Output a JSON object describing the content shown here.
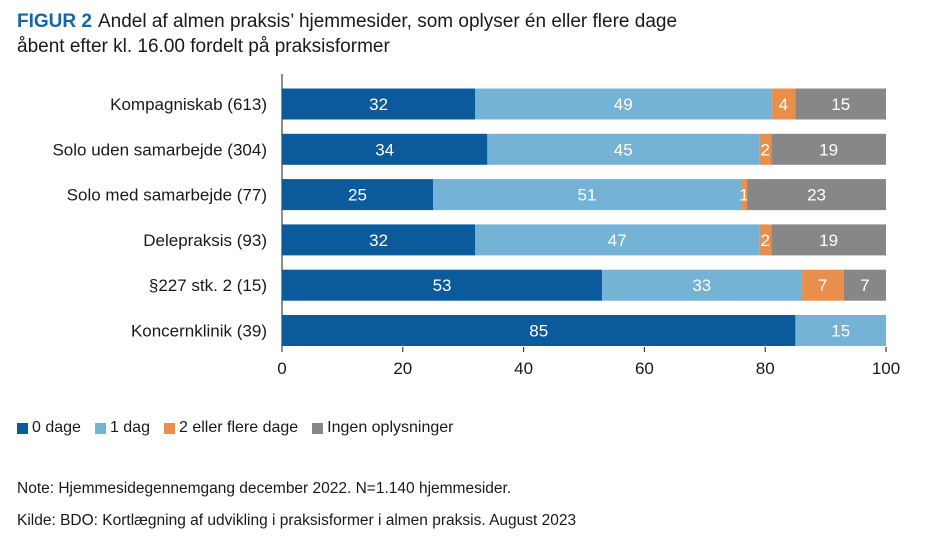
{
  "figure": {
    "label": "FIGUR 2",
    "title": "Andel af almen praksis’ hjemmesider, som oplyser én eller flere dage åbent efter kl. 16.00 fordelt på praksisformer"
  },
  "colors": {
    "0 dage": "#0b5b9c",
    "1 dag": "#74b2d6",
    "2 eller flere dage": "#e98f4d",
    "Ingen oplysninger": "#878787",
    "title_accent": "#1665a8"
  },
  "chart_data": {
    "type": "bar",
    "orientation": "horizontal",
    "stacked": true,
    "title": "Andel af almen praksis’ hjemmesider, som oplyser én eller flere dage åbent efter kl. 16.00 fordelt på praksisformer",
    "xlabel": "",
    "ylabel": "",
    "xlim": [
      0,
      100
    ],
    "x_ticks": [
      0,
      20,
      40,
      60,
      80,
      100
    ],
    "grid": false,
    "legend_position": "bottom-left",
    "categories": [
      "Kompagniskab (613)",
      "Solo uden samarbejde (304)",
      "Solo med samarbejde (77)",
      "Delepraksis (93)",
      "§227 stk. 2 (15)",
      "Koncernklinik (39)"
    ],
    "series": [
      {
        "name": "0 dage",
        "values": [
          32,
          34,
          25,
          32,
          53,
          85
        ]
      },
      {
        "name": "1 dag",
        "values": [
          49,
          45,
          51,
          47,
          33,
          15
        ]
      },
      {
        "name": "2 eller flere dage",
        "values": [
          4,
          2,
          1,
          2,
          7,
          0
        ]
      },
      {
        "name": "Ingen oplysninger",
        "values": [
          15,
          19,
          23,
          19,
          7,
          0
        ]
      }
    ]
  },
  "legend": {
    "items": [
      "0 dage",
      "1 dag",
      "2 eller flere dage",
      "Ingen oplysninger"
    ]
  },
  "notes": {
    "note": "Note: Hjemmesidegennemgang december 2022. N=1.140 hjemmesider.",
    "source": "Kilde: BDO: Kortlægning af udvikling i praksisformer i almen praksis. August 2023"
  }
}
